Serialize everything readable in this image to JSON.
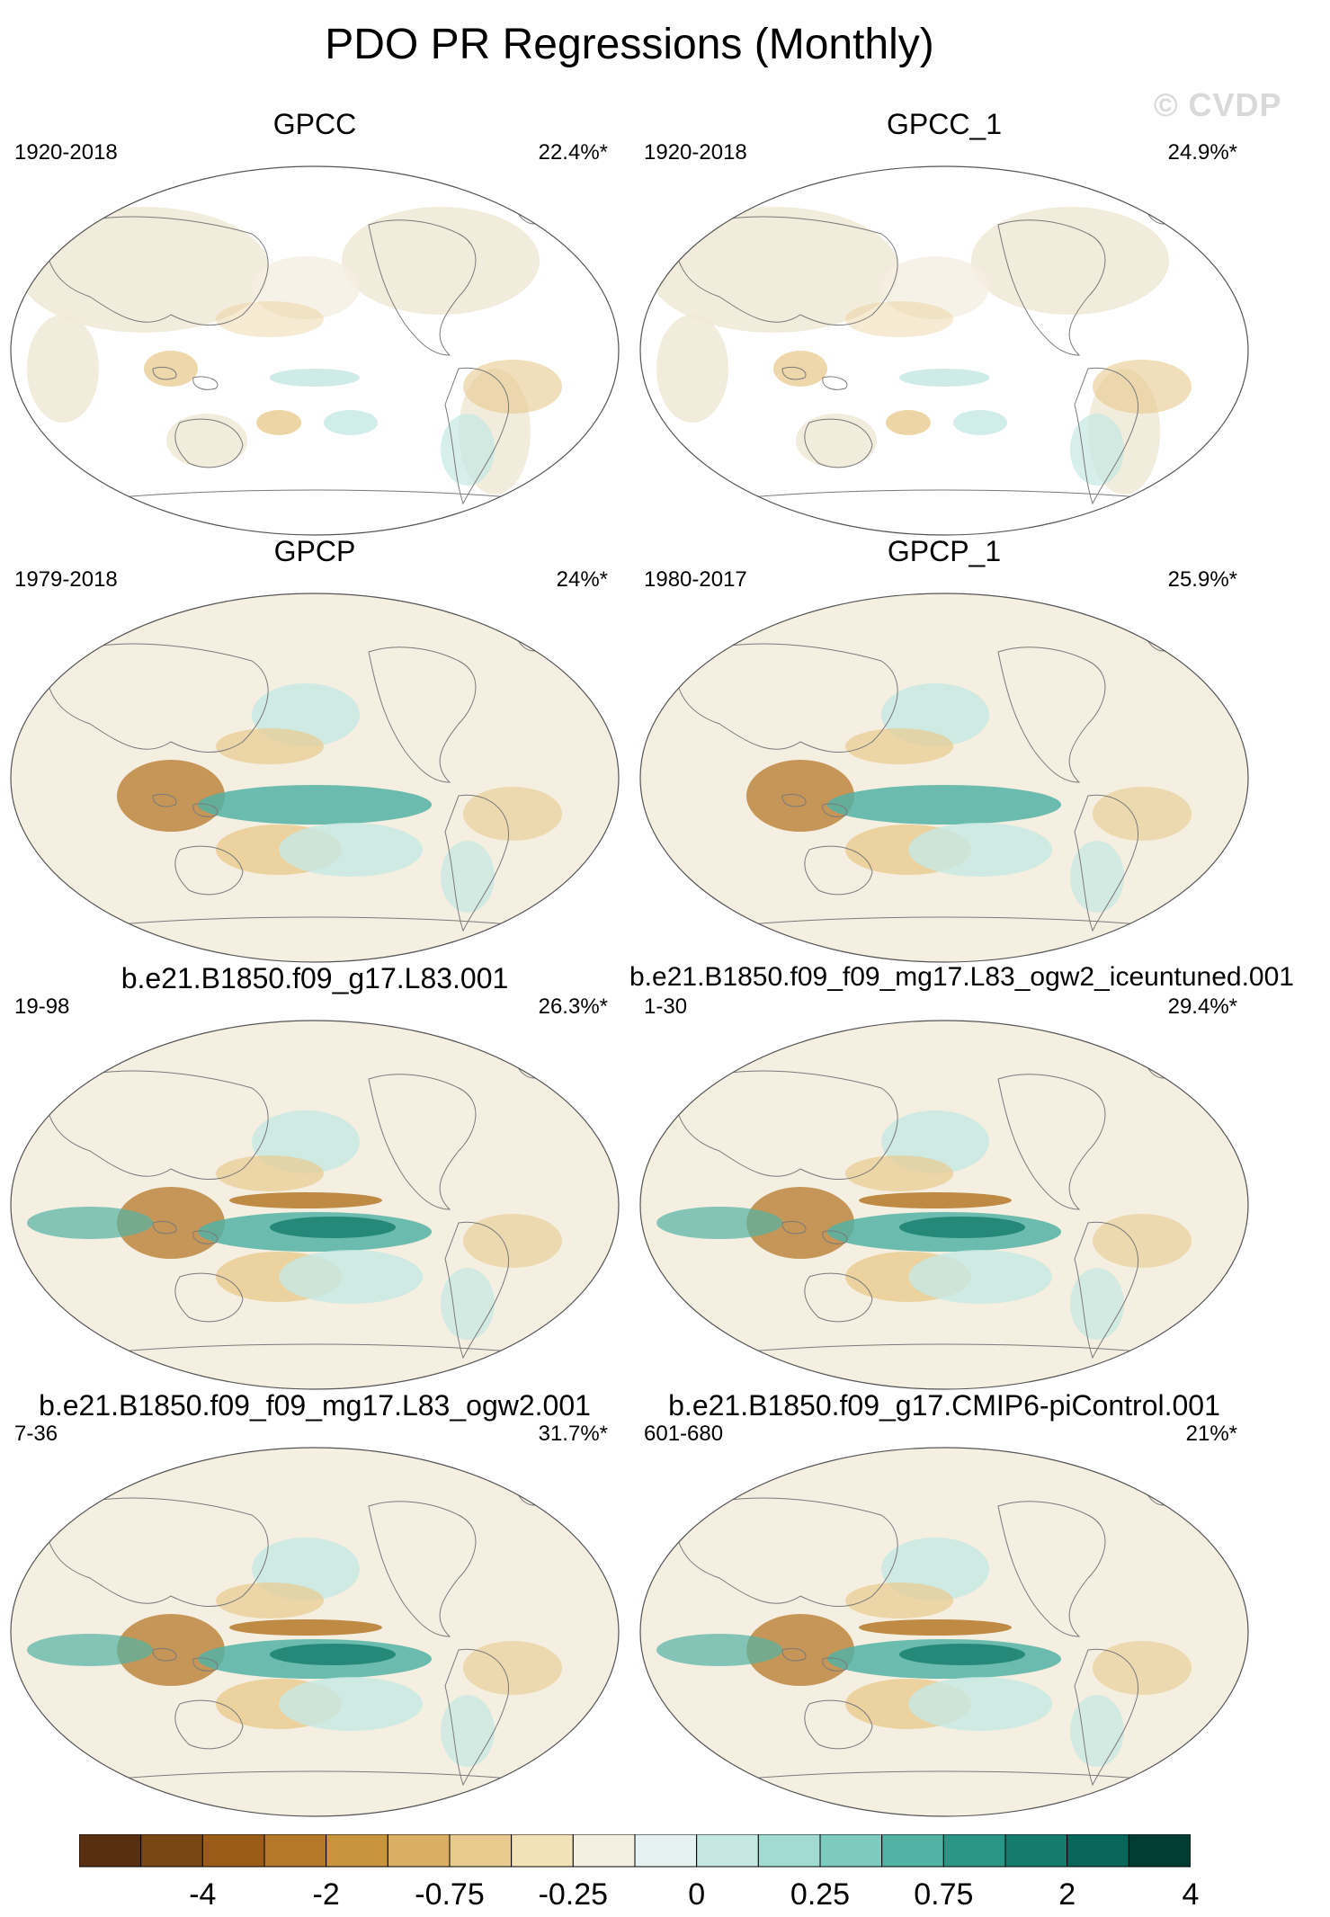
{
  "figure": {
    "title": "PDO PR Regressions (Monthly)",
    "watermark": "© CVDP"
  },
  "panels": [
    {
      "title": "GPCC",
      "period": "1920-2018",
      "percent": "22.4%*",
      "intensity": 0.25
    },
    {
      "title": "GPCC_1",
      "period": "1920-2018",
      "percent": "24.9%*",
      "intensity": 0.25
    },
    {
      "title": "GPCP",
      "period": "1979-2018",
      "percent": "24%*",
      "intensity": 0.7
    },
    {
      "title": "GPCP_1",
      "period": "1980-2017",
      "percent": "25.9%*",
      "intensity": 0.7
    },
    {
      "title": "b.e21.B1850.f09_g17.L83.001",
      "period": "19-98",
      "percent": "26.3%*",
      "intensity": 1.0
    },
    {
      "title": "b.e21.B1850.f09_f09_mg17.L83_ogw2_iceuntuned.001",
      "period": "1-30",
      "percent": "29.4%*",
      "intensity": 0.9
    },
    {
      "title": "b.e21.B1850.f09_f09_mg17.L83_ogw2.001",
      "period": "7-36",
      "percent": "31.7%*",
      "intensity": 0.95
    },
    {
      "title": "b.e21.B1850.f09_g17.CMIP6-piControl.001",
      "period": "601-680",
      "percent": "21%*",
      "intensity": 0.9
    }
  ],
  "colorbar": {
    "colors": [
      "#563010",
      "#7a4613",
      "#9a5c17",
      "#b47828",
      "#c8953e",
      "#d9b063",
      "#e8ca8e",
      "#f3e1b7",
      "#f5efe2",
      "#e5f2f0",
      "#c5e8e3",
      "#a2dbd2",
      "#7dcbbe",
      "#52b2a4",
      "#2c9686",
      "#147c6c",
      "#08655a",
      "#003d33"
    ],
    "labels": [
      "-4",
      "-2",
      "-0.75",
      "-0.25",
      "0",
      "0.25",
      "0.75",
      "2",
      "4"
    ]
  },
  "palette": {
    "brown": "#b47828",
    "tan": "#e8ca8e",
    "cream": "#f5efe2",
    "teal_light": "#c5e8e3",
    "teal": "#52b2a4",
    "teal_dark": "#147c6c",
    "coast": "#7a7a7a"
  }
}
